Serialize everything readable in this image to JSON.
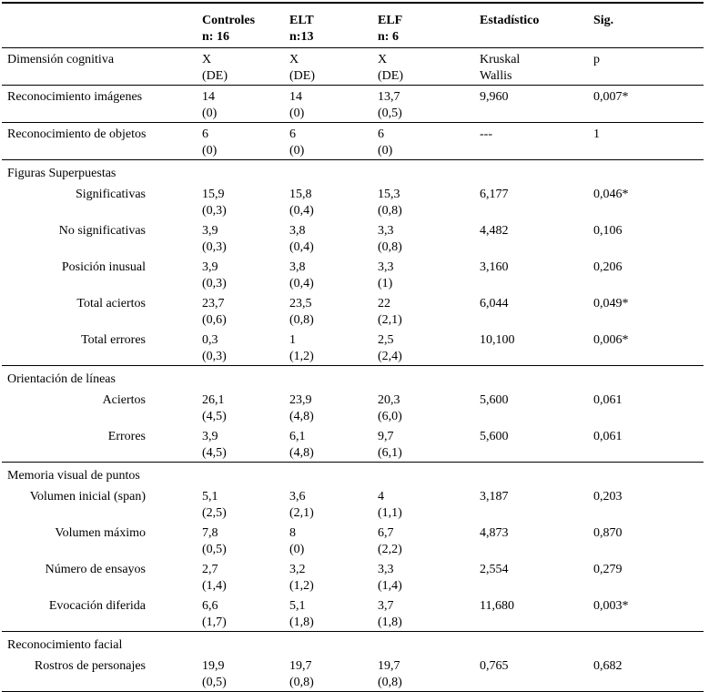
{
  "page": {
    "background": "#ffffff",
    "text_color": "#000000",
    "rule_color": "#000000"
  },
  "table": {
    "type": "table",
    "header": {
      "corner_label": "",
      "groups": [
        {
          "lines": [
            "Controles",
            "n: 16"
          ]
        },
        {
          "lines": [
            "ELT",
            "n:13"
          ]
        },
        {
          "lines": [
            "ELF",
            "n: 6"
          ]
        },
        {
          "lines": [
            "Estadístico"
          ]
        },
        {
          "lines": [
            "Sig."
          ]
        }
      ]
    },
    "dimension_row": {
      "label": "Dimensión cognitiva",
      "cells": [
        [
          "X",
          "(DE)"
        ],
        [
          "X",
          "(DE)"
        ],
        [
          "X",
          "(DE)"
        ],
        [
          "Kruskal",
          "Wallis"
        ],
        [
          "p"
        ]
      ]
    },
    "rows": [
      {
        "type": "data",
        "indent": false,
        "label": "Reconocimiento imágenes",
        "cells": [
          [
            "14",
            "(0)"
          ],
          [
            "14",
            "(0)"
          ],
          [
            "13,7",
            "(0,5)"
          ],
          [
            "9,960"
          ],
          [
            "0,007*"
          ]
        ],
        "rule_after": true
      },
      {
        "type": "data",
        "indent": false,
        "label": "Reconocimiento de objetos",
        "cells": [
          [
            "6",
            "(0)"
          ],
          [
            "6",
            "(0)"
          ],
          [
            "6",
            "(0)"
          ],
          [
            "---"
          ],
          [
            "1"
          ]
        ],
        "rule_after": true
      },
      {
        "type": "section",
        "label": "Figuras Superpuestas"
      },
      {
        "type": "data",
        "indent": true,
        "label": "Significativas",
        "cells": [
          [
            "15,9",
            "(0,3)"
          ],
          [
            "15,8",
            "(0,4)"
          ],
          [
            "15,3",
            "(0,8)"
          ],
          [
            "6,177"
          ],
          [
            "0,046*"
          ]
        ],
        "rule_after": false
      },
      {
        "type": "data",
        "indent": true,
        "label": "No significativas",
        "cells": [
          [
            "3,9",
            "(0,3)"
          ],
          [
            "3,8",
            "(0,4)"
          ],
          [
            "3,3",
            "(0,8)"
          ],
          [
            "4,482"
          ],
          [
            "0,106"
          ]
        ],
        "rule_after": false
      },
      {
        "type": "data",
        "indent": true,
        "label": "Posición inusual",
        "cells": [
          [
            "3,9",
            "(0,3)"
          ],
          [
            "3,8",
            "(0,4)"
          ],
          [
            "3,3",
            "(1)"
          ],
          [
            "3,160"
          ],
          [
            "0,206"
          ]
        ],
        "rule_after": false
      },
      {
        "type": "data",
        "indent": true,
        "label": "Total aciertos",
        "cells": [
          [
            "23,7",
            "(0,6)"
          ],
          [
            "23,5",
            "(0,8)"
          ],
          [
            "22",
            "(2,1)"
          ],
          [
            "6,044"
          ],
          [
            "0,049*"
          ]
        ],
        "rule_after": false
      },
      {
        "type": "data",
        "indent": true,
        "label": "Total errores",
        "cells": [
          [
            "0,3",
            "(0,3)"
          ],
          [
            "1",
            "(1,2)"
          ],
          [
            "2,5",
            "(2,4)"
          ],
          [
            "10,100"
          ],
          [
            "0,006*"
          ]
        ],
        "rule_after": true
      },
      {
        "type": "section",
        "label": "Orientación de líneas"
      },
      {
        "type": "data",
        "indent": true,
        "label": "Aciertos",
        "cells": [
          [
            "26,1",
            "(4,5)"
          ],
          [
            "23,9",
            "(4,8)"
          ],
          [
            "20,3",
            "(6,0)"
          ],
          [
            "5,600"
          ],
          [
            "0,061"
          ]
        ],
        "rule_after": false
      },
      {
        "type": "data",
        "indent": true,
        "label": "Errores",
        "cells": [
          [
            "3,9",
            "(4,5)"
          ],
          [
            "6,1",
            "(4,8)"
          ],
          [
            "9,7",
            "(6,1)"
          ],
          [
            "5,600"
          ],
          [
            "0,061"
          ]
        ],
        "rule_after": true
      },
      {
        "type": "section",
        "label": "Memoria visual de puntos"
      },
      {
        "type": "data",
        "indent": true,
        "label": "Volumen inicial (span)",
        "cells": [
          [
            "5,1",
            "(2,5)"
          ],
          [
            "3,6",
            "(2,1)"
          ],
          [
            "4",
            "(1,1)"
          ],
          [
            "3,187"
          ],
          [
            "0,203"
          ]
        ],
        "rule_after": false
      },
      {
        "type": "data",
        "indent": true,
        "label": "Volumen máximo",
        "cells": [
          [
            "7,8",
            "(0,5)"
          ],
          [
            "8",
            "(0)"
          ],
          [
            "6,7",
            "(2,2)"
          ],
          [
            "4,873"
          ],
          [
            "0,870"
          ]
        ],
        "rule_after": false
      },
      {
        "type": "data",
        "indent": true,
        "label": "Número de ensayos",
        "cells": [
          [
            "2,7",
            "(1,4)"
          ],
          [
            "3,2",
            "(1,2)"
          ],
          [
            "3,3",
            "(1,4)"
          ],
          [
            "2,554"
          ],
          [
            "0,279"
          ]
        ],
        "rule_after": false
      },
      {
        "type": "data",
        "indent": true,
        "label": "Evocación diferida",
        "cells": [
          [
            "6,6",
            "(1,7)"
          ],
          [
            "5,1",
            "(1,8)"
          ],
          [
            "3,7",
            "(1,8)"
          ],
          [
            "11,680"
          ],
          [
            "0,003*"
          ]
        ],
        "rule_after": true
      },
      {
        "type": "section",
        "label": "Reconocimiento facial"
      },
      {
        "type": "data",
        "indent": true,
        "label": "Rostros de personajes",
        "cells": [
          [
            "19,9",
            "(0,5)"
          ],
          [
            "19,7",
            "(0,8)"
          ],
          [
            "19,7",
            "(0,8)"
          ],
          [
            "0,765"
          ],
          [
            "0,682"
          ]
        ],
        "rule_after": true
      }
    ]
  }
}
